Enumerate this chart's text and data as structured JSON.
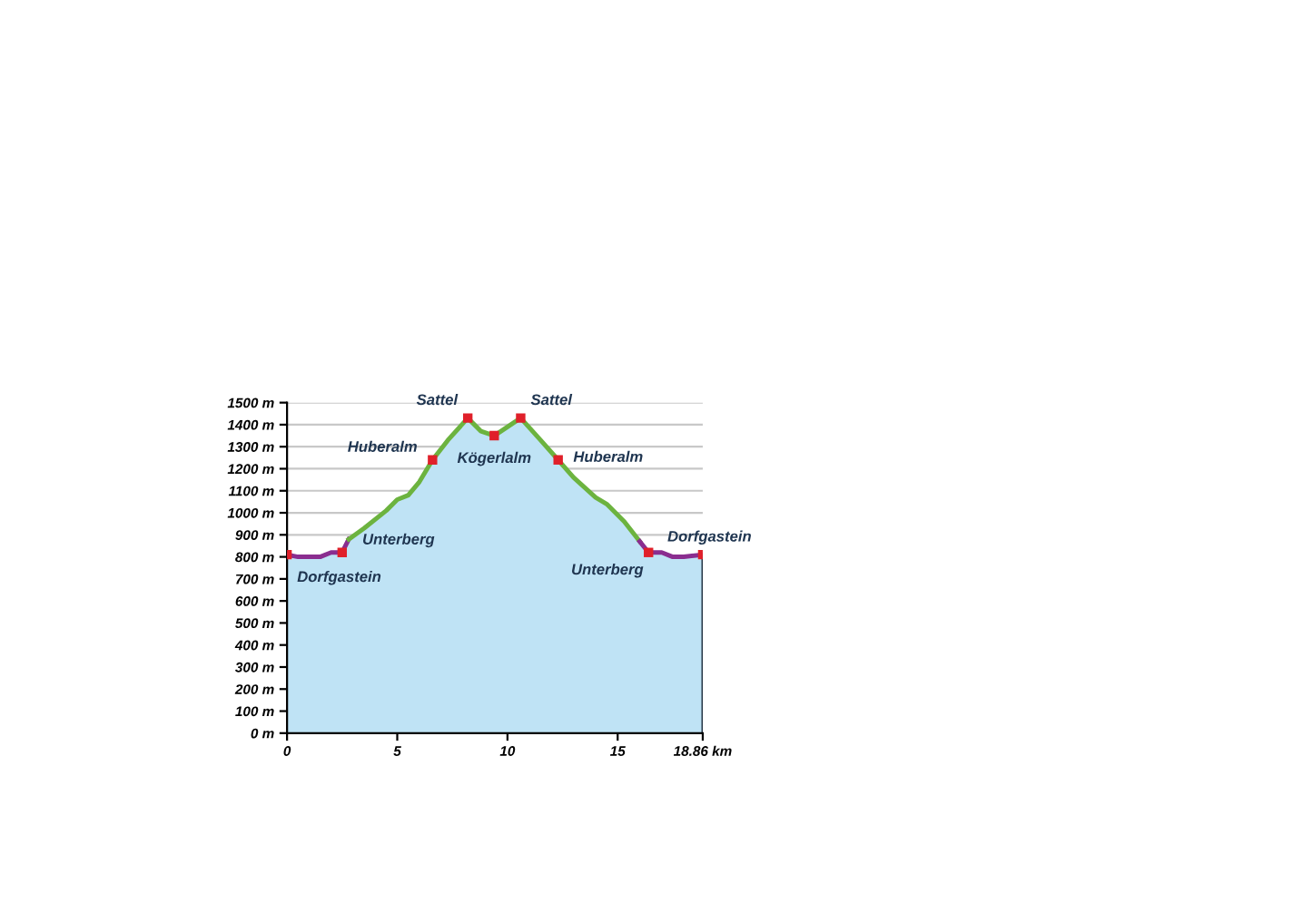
{
  "chart_data": {
    "type": "area",
    "series": [
      {
        "color": "#bfe3f5",
        "x": [
          0,
          0.5,
          1,
          1.5,
          2,
          2.5,
          2.8,
          3.5,
          4.5,
          5,
          5.5,
          6,
          6.6,
          7.3,
          8.2,
          8.8,
          9.4,
          10,
          10.6,
          11.5,
          12.3,
          13,
          14,
          14.5,
          15.3,
          16,
          16.4,
          17,
          17.5,
          18,
          18.86
        ],
        "values": [
          810,
          800,
          800,
          800,
          820,
          820,
          880,
          930,
          1010,
          1060,
          1080,
          1140,
          1240,
          1330,
          1430,
          1370,
          1350,
          1390,
          1430,
          1330,
          1240,
          1160,
          1070,
          1040,
          960,
          870,
          820,
          820,
          800,
          800,
          810
        ]
      },
      {
        "type": "line",
        "color": "#8a2d8f",
        "x": [
          0,
          0.5,
          1,
          1.5,
          2,
          2.5,
          2.8
        ],
        "values": [
          810,
          800,
          800,
          800,
          820,
          820,
          880
        ]
      },
      {
        "type": "line",
        "color": "#6cb33f",
        "x": [
          2.8,
          3.5,
          4.5,
          5,
          5.5,
          6,
          6.6,
          7.3,
          8.2,
          8.8,
          9.4,
          10,
          10.6,
          11.5,
          12.3,
          13,
          14,
          14.5,
          15.3,
          16
        ],
        "values": [
          880,
          930,
          1010,
          1060,
          1080,
          1140,
          1240,
          1330,
          1430,
          1370,
          1350,
          1390,
          1430,
          1330,
          1240,
          1160,
          1070,
          1040,
          960,
          870
        ]
      },
      {
        "type": "line",
        "color": "#8a2d8f",
        "x": [
          16,
          16.4,
          17,
          17.5,
          18,
          18.86
        ],
        "values": [
          870,
          820,
          820,
          800,
          800,
          810
        ]
      },
      {
        "type": "scatter",
        "color": "#e0202a",
        "x": [
          0,
          2.5,
          6.6,
          8.2,
          9.4,
          10.6,
          12.3,
          16.4,
          18.86
        ],
        "values": [
          810,
          820,
          1240,
          1430,
          1350,
          1430,
          1240,
          820,
          810
        ]
      }
    ],
    "annotations": [
      {
        "text": "Dorfgastein",
        "x": 0,
        "y": 810
      },
      {
        "text": "Unterberg",
        "x": 2.5,
        "y": 820
      },
      {
        "text": "Huberalm",
        "x": 6.6,
        "y": 1240
      },
      {
        "text": "Sattel",
        "x": 8.2,
        "y": 1430
      },
      {
        "text": "Kögerlalm",
        "x": 9.4,
        "y": 1350
      },
      {
        "text": "Sattel",
        "x": 10.6,
        "y": 1430
      },
      {
        "text": "Huberalm",
        "x": 12.3,
        "y": 1240
      },
      {
        "text": "Unterberg",
        "x": 16.4,
        "y": 820
      },
      {
        "text": "Dorfgastein",
        "x": 18.86,
        "y": 810
      }
    ],
    "xlim": [
      0,
      18.86
    ],
    "xticks": [
      0,
      5,
      10,
      15,
      {
        "value": 18.86,
        "label": "18.86 km"
      }
    ],
    "ylim": [
      0,
      1500
    ],
    "yticks": [
      {
        "value": 0,
        "label": "0 m"
      },
      {
        "value": 100,
        "label": "100 m"
      },
      {
        "value": 200,
        "label": "200 m"
      },
      {
        "value": 300,
        "label": "300 m"
      },
      {
        "value": 400,
        "label": "400 m"
      },
      {
        "value": 500,
        "label": "500 m"
      },
      {
        "value": 600,
        "label": "600 m"
      },
      {
        "value": 700,
        "label": "700 m"
      },
      {
        "value": 800,
        "label": "800 m"
      },
      {
        "value": 900,
        "label": "900 m"
      },
      {
        "value": 1000,
        "label": "1000 m"
      },
      {
        "value": 1100,
        "label": "1100 m"
      },
      {
        "value": 1200,
        "label": "1200 m"
      },
      {
        "value": 1300,
        "label": "1300 m"
      },
      {
        "value": 1400,
        "label": "1400 m"
      },
      {
        "value": 1500,
        "label": "1500 m"
      }
    ],
    "grid": "y"
  }
}
